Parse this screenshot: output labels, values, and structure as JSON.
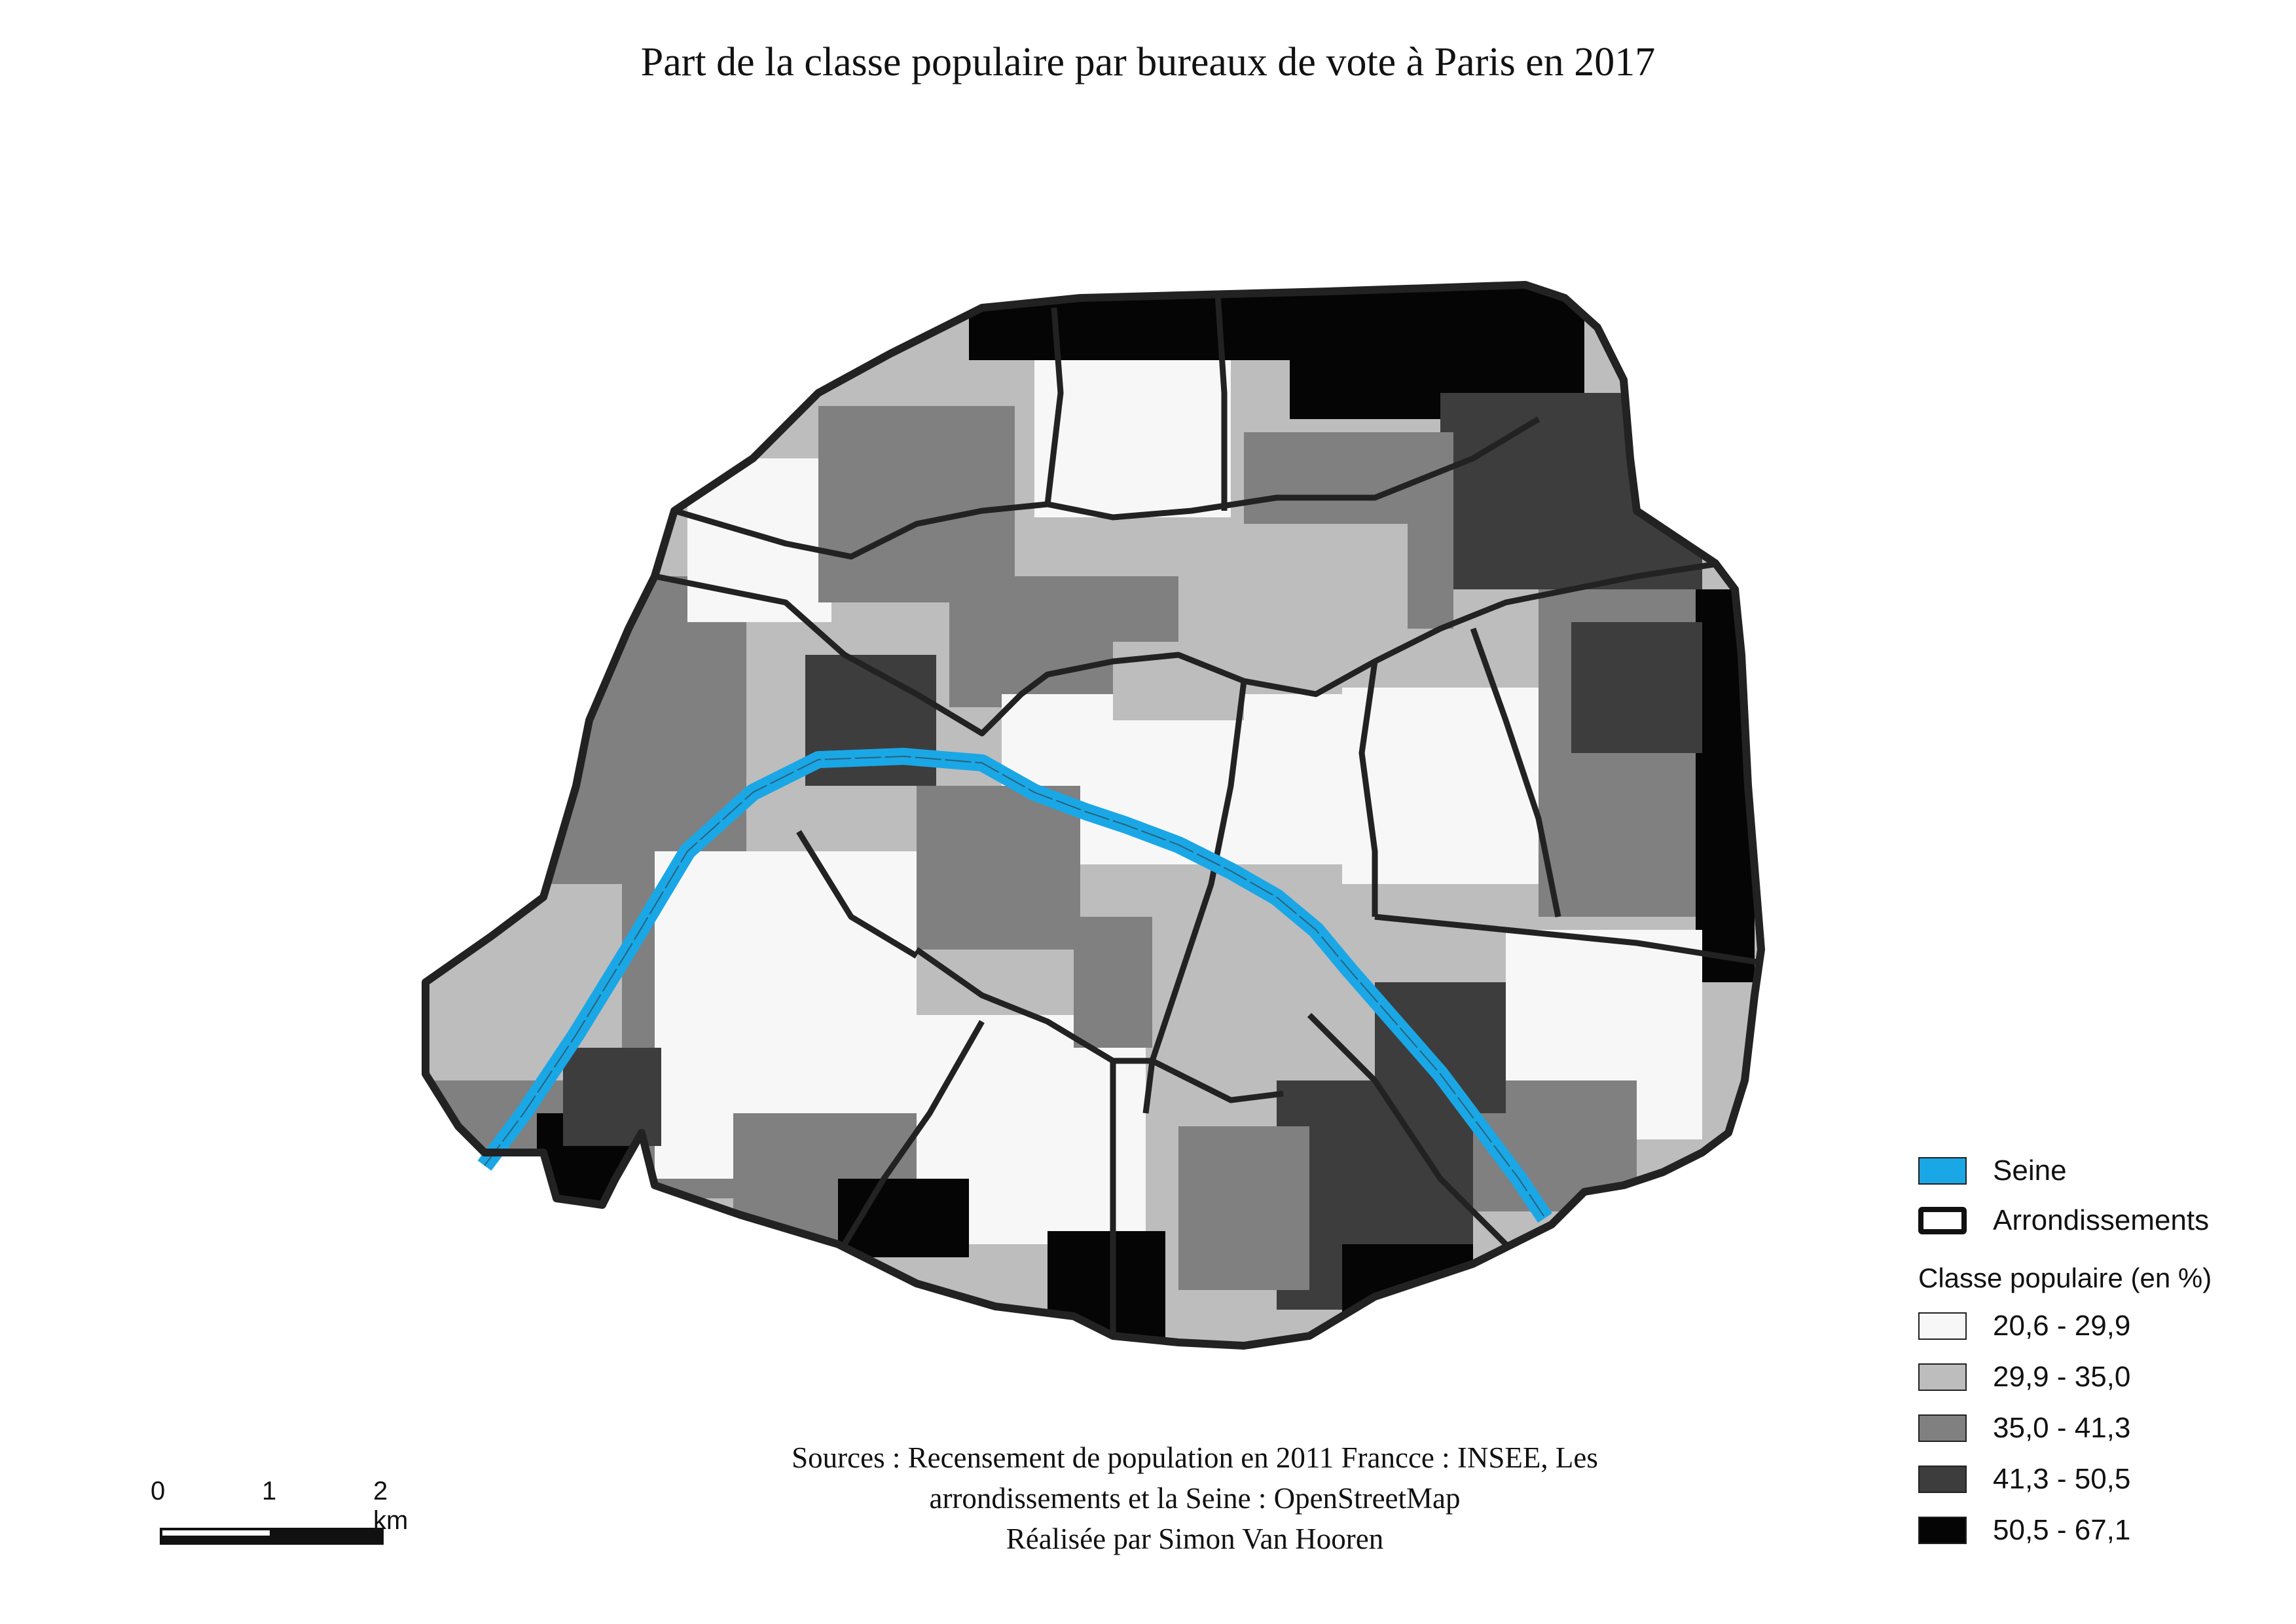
{
  "title": "Part de la classe populaire par bureaux de vote à Paris en 2017",
  "legend": {
    "river_label": "Seine",
    "arrondissements_label": "Arrondissements",
    "classes_title": "Classe populaire (en %)",
    "classes": [
      {
        "label": "20,6 - 29,9",
        "color": "#f7f7f7"
      },
      {
        "label": "29,9 - 35,0",
        "color": "#bdbdbd"
      },
      {
        "label": "35,0 - 41,3",
        "color": "#808080"
      },
      {
        "label": "41,3 - 50,5",
        "color": "#3d3d3d"
      },
      {
        "label": "50,5 - 67,1",
        "color": "#050505"
      }
    ]
  },
  "river_color": "#1aa7e6",
  "scalebar": {
    "tick_0": "0",
    "tick_1": "1",
    "tick_2": "2 km"
  },
  "sources": {
    "line1": "Sources : Recensement de population en 2011 Francce : INSEE, Les",
    "line2": "arrondissements et la Seine : OpenStreetMap",
    "line3": "Réalisée par Simon Van Hooren"
  }
}
